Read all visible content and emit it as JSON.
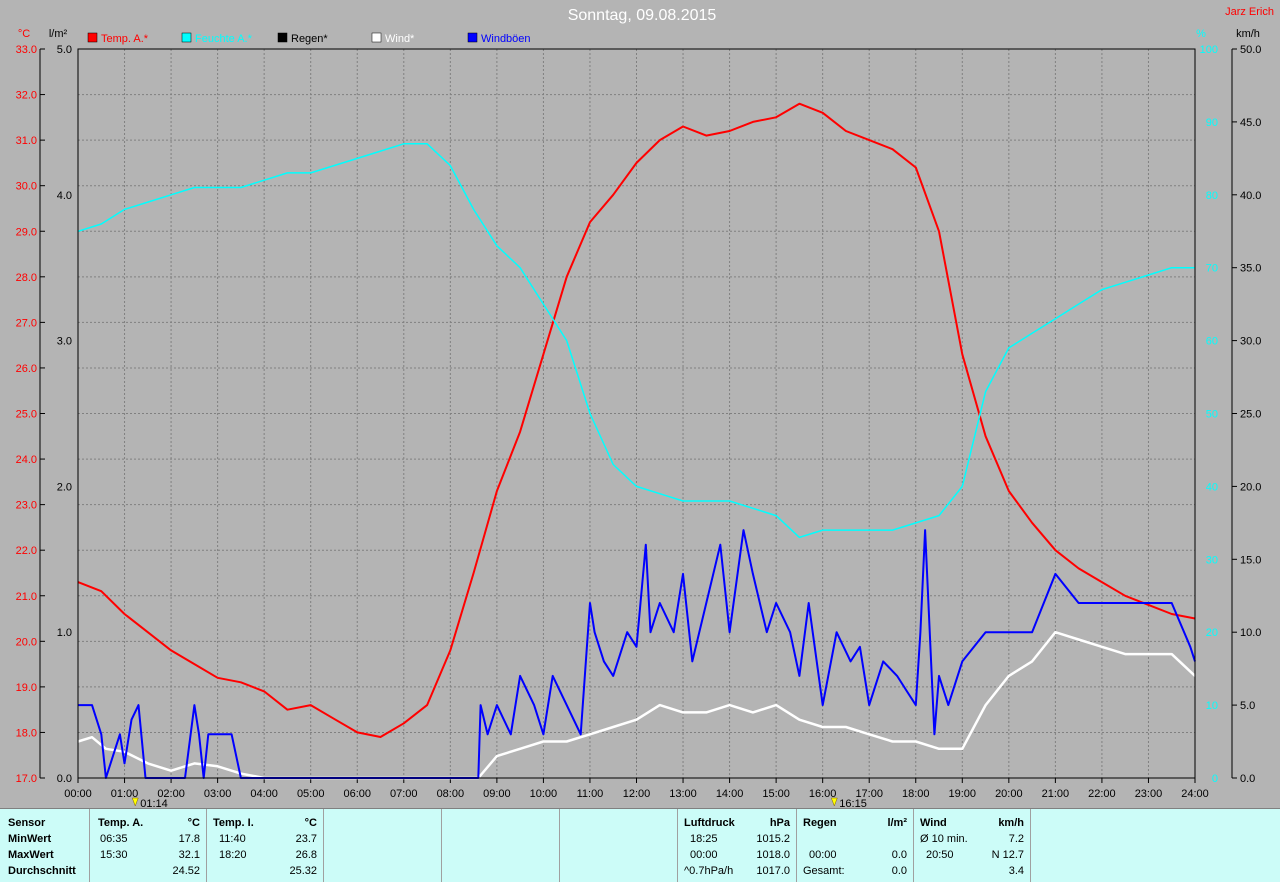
{
  "header": {
    "title": "Sonntag, 09.08.2015",
    "author": "Jarz Erich"
  },
  "axes": {
    "left1_unit": "°C",
    "left2_unit": "l/m²",
    "right1_unit": "%",
    "right2_unit": "km/h",
    "temp_ticks": [
      "33.0",
      "32.0",
      "31.0",
      "30.0",
      "29.0",
      "28.0",
      "27.0",
      "26.0",
      "25.0",
      "24.0",
      "23.0",
      "22.0",
      "21.0",
      "20.0",
      "19.0",
      "18.0",
      "17.0"
    ],
    "rain_ticks": [
      "5.0",
      "4.0",
      "3.0",
      "2.0",
      "1.0",
      "0.0"
    ],
    "hum_ticks": [
      "100",
      "90",
      "80",
      "70",
      "60",
      "50",
      "40",
      "30",
      "20",
      "10",
      "0"
    ],
    "wind_ticks": [
      "50.0",
      "45.0",
      "40.0",
      "35.0",
      "30.0",
      "25.0",
      "20.0",
      "15.0",
      "10.0",
      "5.0",
      "0.0"
    ],
    "x_ticks": [
      "00:00",
      "01:00",
      "02:00",
      "03:00",
      "04:00",
      "05:00",
      "06:00",
      "07:00",
      "08:00",
      "09:00",
      "10:00",
      "11:00",
      "12:00",
      "13:00",
      "14:00",
      "15:00",
      "16:00",
      "17:00",
      "18:00",
      "19:00",
      "20:00",
      "21:00",
      "22:00",
      "23:00",
      "24:00"
    ]
  },
  "legend": [
    {
      "label": "Temp. A.*",
      "color": "#ff0000"
    },
    {
      "label": "Feuchte A.*",
      "color": "#00ffff"
    },
    {
      "label": "Regen*",
      "color": "#000000"
    },
    {
      "label": "Wind*",
      "color": "#ffffff"
    },
    {
      "label": "Windböen",
      "color": "#0000ff"
    }
  ],
  "markers": [
    {
      "label": "01:14",
      "hour": 1.23
    },
    {
      "label": "16:15",
      "hour": 16.25
    }
  ],
  "chart_data": {
    "type": "line",
    "x_range": [
      0,
      24
    ],
    "temp_range": [
      17,
      33
    ],
    "hum_range": [
      0,
      100
    ],
    "wind_range": [
      0,
      50
    ],
    "rain_range": [
      0,
      5
    ],
    "series": [
      {
        "name": "Temp. A.*",
        "axis": "temp",
        "color": "#ff0000",
        "x": [
          0,
          0.5,
          1,
          1.5,
          2,
          2.5,
          3,
          3.5,
          4,
          4.5,
          5,
          5.5,
          6,
          6.5,
          7,
          7.5,
          8,
          8.5,
          9,
          9.5,
          10,
          10.5,
          11,
          11.5,
          12,
          12.5,
          13,
          13.5,
          14,
          14.5,
          15,
          15.5,
          16,
          16.5,
          17,
          17.5,
          18,
          18.5,
          19,
          19.5,
          20,
          20.5,
          21,
          21.5,
          22,
          22.5,
          23,
          23.5,
          24
        ],
        "y": [
          21.3,
          21.1,
          20.6,
          20.2,
          19.8,
          19.5,
          19.2,
          19.1,
          18.9,
          18.5,
          18.6,
          18.3,
          18.0,
          17.9,
          18.2,
          18.6,
          19.8,
          21.5,
          23.3,
          24.6,
          26.3,
          28.0,
          29.2,
          29.8,
          30.5,
          31.0,
          31.3,
          31.1,
          31.2,
          31.4,
          31.5,
          31.8,
          31.6,
          31.2,
          31.0,
          30.8,
          30.4,
          29.0,
          26.3,
          24.5,
          23.3,
          22.6,
          22.0,
          21.6,
          21.3,
          21.0,
          20.8,
          20.6,
          20.5
        ]
      },
      {
        "name": "Feuchte A.*",
        "axis": "hum",
        "color": "#00ffff",
        "x": [
          0,
          0.5,
          1,
          1.5,
          2,
          2.5,
          3,
          3.5,
          4,
          4.5,
          5,
          5.5,
          6,
          6.5,
          7,
          7.5,
          8,
          8.5,
          9,
          9.5,
          10,
          10.5,
          11,
          11.5,
          12,
          12.5,
          13,
          13.5,
          14,
          14.5,
          15,
          15.5,
          16,
          16.5,
          17,
          17.5,
          18,
          18.5,
          19,
          19.5,
          20,
          20.5,
          21,
          21.5,
          22,
          22.5,
          23,
          23.5,
          24
        ],
        "y": [
          75,
          76,
          78,
          79,
          80,
          81,
          81,
          81,
          82,
          83,
          83,
          84,
          85,
          86,
          87,
          87,
          84,
          78,
          73,
          70,
          65,
          60,
          50,
          43,
          40,
          39,
          38,
          38,
          38,
          37,
          36,
          33,
          34,
          34,
          34,
          34,
          35,
          36,
          40,
          53,
          59,
          61,
          63,
          65,
          67,
          68,
          69,
          70,
          70
        ]
      },
      {
        "name": "Wind*",
        "axis": "wind",
        "color": "#ffffff",
        "x": [
          0,
          0.3,
          0.6,
          1,
          1.5,
          2,
          2.5,
          3,
          3.5,
          4,
          4.5,
          5,
          8.6,
          9,
          9.5,
          10,
          10.5,
          11,
          11.5,
          12,
          12.5,
          13,
          13.5,
          14,
          14.5,
          15,
          15.5,
          16,
          16.5,
          17,
          17.5,
          18,
          18.5,
          19,
          19.5,
          20,
          20.5,
          21,
          21.5,
          22,
          22.5,
          23,
          23.5,
          24
        ],
        "y": [
          2.5,
          2.8,
          2,
          1.8,
          1,
          0.5,
          1,
          0.8,
          0.3,
          0,
          0,
          0,
          0,
          1.5,
          2,
          2.5,
          2.5,
          3,
          3.5,
          4,
          5,
          4.5,
          4.5,
          5,
          4.5,
          5,
          4,
          3.5,
          3.5,
          3,
          2.5,
          2.5,
          2,
          2,
          5,
          7,
          8,
          10,
          9.5,
          9,
          8.5,
          8.5,
          8.5,
          7
        ]
      },
      {
        "name": "Windböen",
        "axis": "wind",
        "color": "#0000ff",
        "x": [
          0,
          0.3,
          0.5,
          0.6,
          0.9,
          1,
          1.15,
          1.3,
          1.45,
          2.3,
          2.5,
          2.6,
          2.7,
          2.8,
          3.0,
          3.3,
          3.5,
          4,
          8.6,
          8.65,
          8.8,
          9,
          9.3,
          9.5,
          9.8,
          10,
          10.2,
          10.5,
          10.8,
          11,
          11.1,
          11.3,
          11.5,
          11.8,
          12,
          12.2,
          12.3,
          12.5,
          12.8,
          13,
          13.2,
          13.5,
          13.8,
          14,
          14.3,
          14.5,
          14.8,
          15,
          15.3,
          15.5,
          15.7,
          16,
          16.3,
          16.6,
          16.8,
          17,
          17.3,
          17.6,
          17.8,
          18,
          18.1,
          18.2,
          18.4,
          18.5,
          18.7,
          19,
          19.5,
          20,
          20.5,
          21,
          21.5,
          22,
          22.5,
          23,
          23.5,
          23.9,
          24
        ],
        "y": [
          5,
          5,
          3,
          0,
          3,
          1,
          4,
          5,
          0,
          0,
          5,
          3,
          0,
          3,
          3,
          3,
          0,
          0,
          0,
          5,
          3,
          5,
          3,
          7,
          5,
          3,
          7,
          5,
          3,
          12,
          10,
          8,
          7,
          10,
          9,
          16,
          10,
          12,
          10,
          14,
          8,
          12,
          16,
          10,
          17,
          14,
          10,
          12,
          10,
          7,
          12,
          5,
          10,
          8,
          9,
          5,
          8,
          7,
          6,
          5,
          10,
          17,
          3,
          7,
          5,
          8,
          10,
          10,
          10,
          14,
          12,
          12,
          12,
          12,
          12,
          9,
          8
        ]
      },
      {
        "name": "Regen*",
        "axis": "rain",
        "color": "#000000",
        "x": [
          0,
          24
        ],
        "y": [
          0,
          0
        ]
      }
    ]
  },
  "table": {
    "col_sensor": {
      "header": "Sensor",
      "rows": [
        "MinWert",
        "MaxWert",
        "Durchschnitt"
      ]
    },
    "col_temp_a": {
      "header": "Temp. A.",
      "unit": "°C",
      "rows": [
        {
          "time": "06:35",
          "value": "17.8"
        },
        {
          "time": "15:30",
          "value": "32.1"
        },
        {
          "time": "",
          "value": "24.52"
        }
      ]
    },
    "col_temp_i": {
      "header": "Temp. I.",
      "unit": "°C",
      "rows": [
        {
          "time": "11:40",
          "value": "23.7"
        },
        {
          "time": "18:20",
          "value": "26.8"
        },
        {
          "time": "",
          "value": "25.32"
        }
      ]
    },
    "col_pressure": {
      "header": "Luftdruck",
      "unit": "hPa",
      "rows": [
        {
          "time": "18:25",
          "value": "1015.2"
        },
        {
          "time": "00:00",
          "value": "1018.0"
        },
        {
          "time": "^0.7hPa/h",
          "value": "1017.0"
        }
      ]
    },
    "col_rain": {
      "header": "Regen",
      "unit": "l/m²",
      "rows": [
        {
          "time": "",
          "value": ""
        },
        {
          "time": "00:00",
          "value": "0.0"
        },
        {
          "time": "Gesamt:",
          "value": "0.0"
        }
      ]
    },
    "col_wind": {
      "header": "Wind",
      "unit": "km/h",
      "rows": [
        {
          "time": "Ø 10 min.",
          "value": "7.2"
        },
        {
          "time": "20:50",
          "value": "N 12.7"
        },
        {
          "time": "",
          "value": "3.4"
        }
      ]
    }
  }
}
